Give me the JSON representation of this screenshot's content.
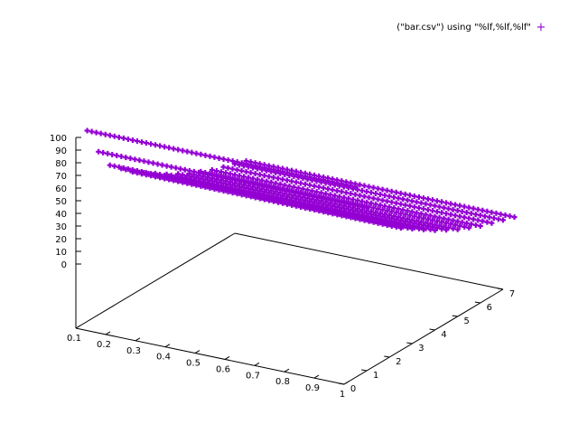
{
  "chart_data": {
    "type": "scatter",
    "projection": "3d-surface-points",
    "legend": {
      "label": "(\"bar.csv\") using \"%lf,%lf,%lf\"",
      "symbol": "+",
      "placement": "top-right"
    },
    "series_color": "#9400d3",
    "axes": {
      "x": {
        "ticks": [
          "0.1",
          "0.2",
          "0.3",
          "0.4",
          "0.5",
          "0.6",
          "0.7",
          "0.8",
          "0.9",
          "1"
        ],
        "range": [
          0.1,
          1
        ]
      },
      "y": {
        "ticks": [
          "0",
          "1",
          "2",
          "3",
          "4",
          "5",
          "6",
          "7"
        ],
        "range": [
          0,
          7
        ]
      },
      "z": {
        "ticks": [
          "0",
          "10",
          "20",
          "30",
          "40",
          "50",
          "60",
          "70",
          "80",
          "90",
          "100"
        ],
        "range": [
          0,
          100
        ]
      }
    },
    "z_ticks_visible": [
      "100",
      "90",
      "80",
      "70",
      "60",
      "50",
      "40",
      "30",
      "20",
      "10",
      "0"
    ],
    "series": [
      {
        "y": 0.5,
        "values": [
          100,
          100,
          100,
          100,
          100,
          100,
          100,
          100,
          100,
          100
        ]
      },
      {
        "y": 1.0,
        "values": [
          78,
          78,
          78,
          78,
          78,
          78,
          78,
          78,
          78,
          78
        ]
      },
      {
        "y": 1.5,
        "values": [
          62,
          62,
          62,
          62,
          62,
          62,
          62,
          62,
          62,
          62
        ]
      },
      {
        "y": 2.0,
        "values": [
          54,
          54,
          54,
          54,
          54,
          54,
          54,
          54,
          54,
          54
        ]
      },
      {
        "y": 2.5,
        "values": [
          46,
          46,
          46,
          46,
          46,
          46,
          46,
          46,
          46,
          46
        ]
      },
      {
        "y": 3.0,
        "values": [
          40,
          40,
          40,
          40,
          40,
          40,
          40,
          40,
          40,
          40
        ]
      },
      {
        "y": 3.5,
        "values": [
          34,
          34,
          34,
          34,
          34,
          34,
          34,
          34,
          34,
          34
        ]
      },
      {
        "y": 4.0,
        "values": [
          28,
          28,
          28,
          28,
          28,
          28,
          28,
          28,
          28,
          28
        ]
      },
      {
        "y": 4.5,
        "values": [
          23,
          23,
          23,
          23,
          23,
          23,
          23,
          23,
          23,
          23
        ]
      },
      {
        "y": 5.0,
        "values": [
          18,
          18,
          18,
          18,
          18,
          18,
          18,
          18,
          18,
          18
        ]
      },
      {
        "y": 5.5,
        "values": [
          14,
          14,
          14,
          14,
          14,
          14,
          14,
          14,
          14,
          14
        ]
      },
      {
        "y": 6.0,
        "values": [
          10,
          10,
          10,
          10,
          10,
          10,
          10,
          10,
          10,
          10
        ]
      },
      {
        "y": 6.5,
        "values": [
          7,
          7,
          7,
          7,
          7,
          7,
          7,
          7,
          7,
          7
        ]
      },
      {
        "y": 7.0,
        "values": [
          4,
          4,
          4,
          4,
          4,
          4,
          4,
          4,
          4,
          4
        ]
      },
      {
        "y": 7.5,
        "values": [
          1,
          1,
          1,
          1,
          1,
          1,
          1,
          1,
          1,
          1
        ]
      }
    ],
    "x_values": [
      0.1,
      0.2,
      0.3,
      0.4,
      0.5,
      0.6,
      0.7,
      0.8,
      0.9,
      1.0
    ]
  }
}
